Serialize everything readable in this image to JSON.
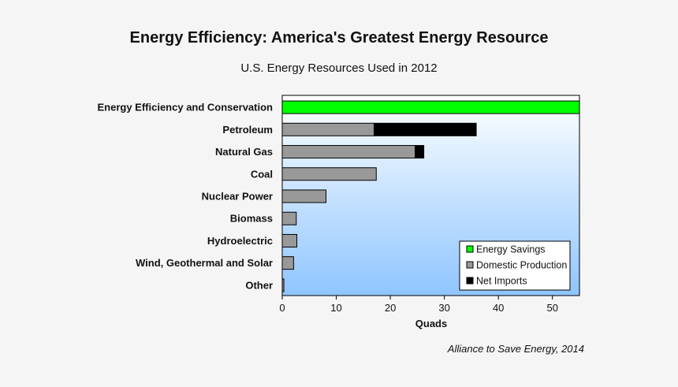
{
  "chart_data": {
    "type": "bar",
    "orientation": "horizontal",
    "stacked": true,
    "title": "Energy Efficiency: America's Greatest Energy Resource",
    "subtitle": "U.S. Energy Resources Used in 2012",
    "xlabel": "Quads",
    "ylabel": "",
    "xlim": [
      0,
      55
    ],
    "xticks": [
      0,
      10,
      20,
      30,
      40,
      50
    ],
    "categories": [
      "Energy Efficiency and Conservation",
      "Petroleum",
      "Natural Gas",
      "Coal",
      "Nuclear Power",
      "Biomass",
      "Hydroelectric",
      "Wind, Geothermal and Solar",
      "Other"
    ],
    "series": [
      {
        "name": "Energy Savings",
        "color": "#00ff00",
        "values": [
          55,
          0,
          0,
          0,
          0,
          0,
          0,
          0,
          0
        ]
      },
      {
        "name": "Domestic Production",
        "color": "#999999",
        "values": [
          0,
          17,
          24.6,
          17.4,
          8.1,
          2.6,
          2.7,
          2.1,
          0.3
        ]
      },
      {
        "name": "Net Imports",
        "color": "#000000",
        "values": [
          0,
          18.9,
          1.6,
          0,
          0,
          0,
          0,
          0,
          0
        ]
      }
    ],
    "legend_position": "bottom-right",
    "grid": false,
    "background": "light-blue gradient"
  },
  "source": "Alliance to Save Energy, 2014"
}
